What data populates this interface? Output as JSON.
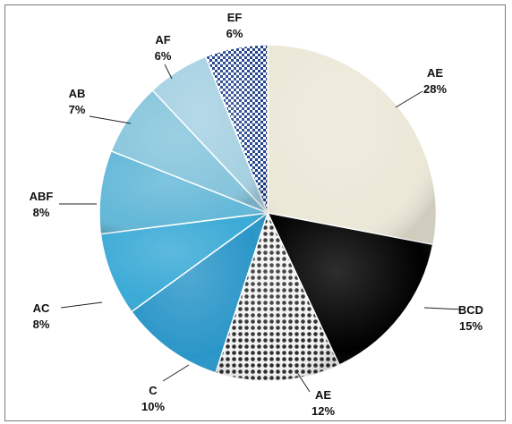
{
  "chart_data": {
    "type": "pie",
    "slices": [
      {
        "label": "AE",
        "value": 28,
        "value_label": "28%",
        "color": "#ece8d8",
        "pattern": "none"
      },
      {
        "label": "BCD",
        "value": 15,
        "value_label": "15%",
        "color": "#000000",
        "pattern": "none"
      },
      {
        "label": "AE",
        "value": 12,
        "value_label": "12%",
        "color": "#ffffff",
        "pattern": "dots"
      },
      {
        "label": "C",
        "value": 10,
        "value_label": "10%",
        "color": "#2a96c8",
        "pattern": "none"
      },
      {
        "label": "AC",
        "value": 8,
        "value_label": "8%",
        "color": "#3aaad6",
        "pattern": "none"
      },
      {
        "label": "ABF",
        "value": 8,
        "value_label": "8%",
        "color": "#63b8d8",
        "pattern": "none"
      },
      {
        "label": "AB",
        "value": 7,
        "value_label": "7%",
        "color": "#86c5dc",
        "pattern": "none"
      },
      {
        "label": "AF",
        "value": 6,
        "value_label": "6%",
        "color": "#a6d1e2",
        "pattern": "none"
      },
      {
        "label": "EF",
        "value": 6,
        "value_label": "6%",
        "color": "#1e3f8a",
        "pattern": "checker"
      }
    ],
    "start_angle_deg": 0,
    "direction": "clockwise",
    "legend": "none",
    "labels": "outside with leader lines"
  }
}
